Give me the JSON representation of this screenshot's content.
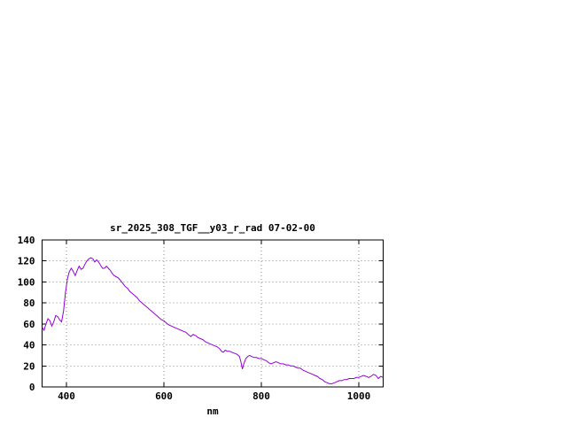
{
  "chart_data": {
    "type": "line",
    "title": "sr_2025_308_TGF__y03_r_rad 07-02-00",
    "xlabel": "nm",
    "ylabel": "",
    "xlim": [
      350,
      1050
    ],
    "ylim": [
      0,
      140
    ],
    "x_ticks": [
      400,
      600,
      800,
      1000
    ],
    "y_ticks": [
      0,
      20,
      40,
      60,
      80,
      100,
      120,
      140
    ],
    "grid": true,
    "legend": "none",
    "line_color": "#9400d3",
    "background_color": "#ffffff",
    "text_color": "#000000",
    "series": [
      {
        "x": [
          350,
          354,
          358,
          362,
          366,
          370,
          374,
          378,
          382,
          386,
          390,
          394,
          398,
          402,
          406,
          410,
          414,
          418,
          422,
          426,
          430,
          434,
          438,
          442,
          446,
          450,
          454,
          458,
          462,
          466,
          470,
          474,
          478,
          482,
          486,
          490,
          494,
          498,
          502,
          506,
          510,
          515,
          520,
          525,
          530,
          535,
          540,
          545,
          550,
          555,
          560,
          565,
          570,
          575,
          580,
          585,
          590,
          595,
          600,
          605,
          610,
          615,
          620,
          625,
          630,
          635,
          640,
          645,
          650,
          655,
          660,
          665,
          670,
          675,
          680,
          685,
          690,
          695,
          700,
          705,
          710,
          715,
          718,
          722,
          726,
          730,
          735,
          740,
          745,
          750,
          755,
          758,
          761,
          764,
          768,
          772,
          776,
          780,
          785,
          790,
          795,
          800,
          805,
          810,
          815,
          820,
          825,
          830,
          835,
          840,
          845,
          850,
          855,
          860,
          865,
          870,
          875,
          880,
          885,
          890,
          895,
          900,
          905,
          910,
          915,
          920,
          925,
          930,
          935,
          940,
          945,
          950,
          955,
          960,
          965,
          970,
          975,
          980,
          985,
          990,
          995,
          1000,
          1005,
          1010,
          1015,
          1020,
          1025,
          1030,
          1035,
          1040,
          1045,
          1050
        ],
        "y": [
          57,
          54,
          60,
          65,
          63,
          58,
          62,
          68,
          67,
          64,
          62,
          72,
          90,
          103,
          110,
          113,
          110,
          106,
          111,
          115,
          112,
          113,
          117,
          120,
          122,
          123,
          122,
          119,
          121,
          119,
          116,
          113,
          113,
          115,
          113,
          111,
          108,
          106,
          105,
          104,
          102,
          99,
          96,
          94,
          91,
          89,
          87,
          85,
          82,
          80,
          78,
          76,
          74,
          72,
          70,
          68,
          66,
          64,
          63,
          61,
          59,
          58,
          57,
          56,
          55,
          54,
          53,
          52,
          50,
          48,
          50,
          49,
          47,
          46,
          45,
          43,
          42,
          41,
          40,
          39,
          38,
          36,
          34,
          33,
          35,
          34,
          34,
          33,
          32,
          31,
          29,
          24,
          17,
          22,
          27,
          29,
          30,
          29,
          28,
          28,
          27,
          27,
          26,
          25,
          23,
          22,
          23,
          24,
          23,
          22,
          22,
          21,
          21,
          20,
          20,
          19,
          18,
          18,
          16,
          15,
          14,
          13,
          12,
          11,
          10,
          8,
          7,
          5,
          4,
          3,
          3,
          4,
          5,
          6,
          6,
          7,
          7,
          8,
          8,
          8,
          9,
          9,
          10,
          11,
          10,
          9,
          10,
          12,
          11,
          8,
          10,
          9
        ]
      }
    ]
  }
}
